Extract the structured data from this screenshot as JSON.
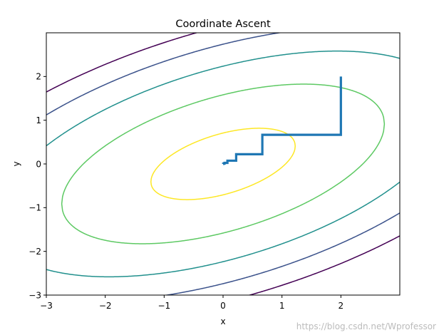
{
  "chart_data": {
    "type": "line",
    "title": "Coordinate Ascent",
    "xlabel": "x",
    "ylabel": "y",
    "xlim": [
      -3,
      3
    ],
    "ylim": [
      -3,
      3
    ],
    "x_ticks": [
      -3,
      -2,
      -1,
      0,
      1,
      2
    ],
    "y_ticks": [
      -3,
      -2,
      -1,
      0,
      1,
      2
    ],
    "x_tick_labels": [
      "−3",
      "−2",
      "−1",
      "0",
      "1",
      "2"
    ],
    "y_tick_labels": [
      "−3",
      "−2",
      "−1",
      "0",
      "1",
      "2"
    ],
    "grid": false,
    "contours": {
      "function": "-x^2 - 3*y^2 + 2*x*y",
      "levels": [
        -20,
        -15,
        -10,
        -5,
        -1
      ],
      "colors": [
        "#440154",
        "#3b528b",
        "#21908d",
        "#5dc963",
        "#fde725"
      ]
    },
    "series": [
      {
        "color": "#1f77b4",
        "points": [
          [
            2.0,
            2.0
          ],
          [
            2.0,
            0.6667
          ],
          [
            0.6667,
            0.6667
          ],
          [
            0.6667,
            0.2222
          ],
          [
            0.2222,
            0.2222
          ],
          [
            0.2222,
            0.0741
          ],
          [
            0.0741,
            0.0741
          ],
          [
            0.0741,
            0.0247
          ],
          [
            0.0247,
            0.0247
          ],
          [
            0.0247,
            0.0082
          ],
          [
            0.0082,
            0.0082
          ],
          [
            0.0082,
            0.0027
          ],
          [
            0.0027,
            0.0027
          ],
          [
            0.0027,
            0.0009
          ],
          [
            0.0009,
            0.0009
          ]
        ]
      }
    ]
  },
  "watermark": "https://blog.csdn.net/Wprofessor"
}
